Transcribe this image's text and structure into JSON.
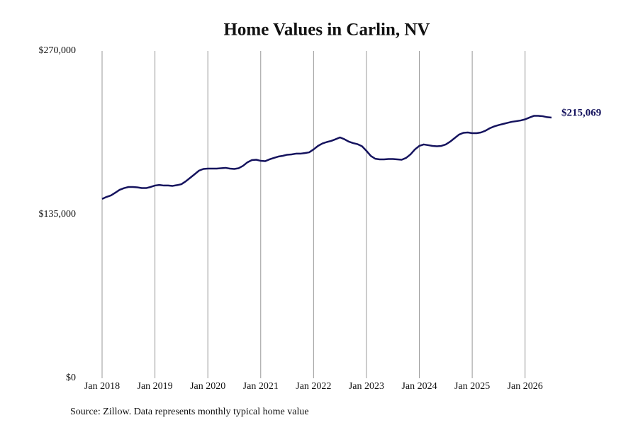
{
  "chart_data": {
    "type": "line",
    "title": "Home Values in Carlin, NV",
    "source": "Source: Zillow. Data represents monthly typical home value",
    "end_label": "$215,069",
    "x": [
      "2018-01",
      "2018-02",
      "2018-03",
      "2018-04",
      "2018-05",
      "2018-06",
      "2018-07",
      "2018-08",
      "2018-09",
      "2018-10",
      "2018-11",
      "2018-12",
      "2019-01",
      "2019-02",
      "2019-03",
      "2019-04",
      "2019-05",
      "2019-06",
      "2019-07",
      "2019-08",
      "2019-09",
      "2019-10",
      "2019-11",
      "2019-12",
      "2020-01",
      "2020-02",
      "2020-03",
      "2020-04",
      "2020-05",
      "2020-06",
      "2020-07",
      "2020-08",
      "2020-09",
      "2020-10",
      "2020-11",
      "2020-12",
      "2021-01",
      "2021-02",
      "2021-03",
      "2021-04",
      "2021-05",
      "2021-06",
      "2021-07",
      "2021-08",
      "2021-09",
      "2021-10",
      "2021-11",
      "2021-12",
      "2022-01",
      "2022-02",
      "2022-03",
      "2022-04",
      "2022-05",
      "2022-06",
      "2022-07",
      "2022-08",
      "2022-09",
      "2022-10",
      "2022-11",
      "2022-12",
      "2023-01",
      "2023-02",
      "2023-03",
      "2023-04",
      "2023-05",
      "2023-06",
      "2023-07",
      "2023-08",
      "2023-09",
      "2023-10",
      "2023-11",
      "2023-12",
      "2024-01",
      "2024-02",
      "2024-03",
      "2024-04",
      "2024-05",
      "2024-06",
      "2024-07",
      "2024-08",
      "2024-09",
      "2024-10",
      "2024-11",
      "2024-12",
      "2025-01",
      "2025-02",
      "2025-03",
      "2025-04",
      "2025-05",
      "2025-06",
      "2025-07",
      "2025-08",
      "2025-09",
      "2025-10",
      "2025-11",
      "2025-12",
      "2026-01",
      "2026-02",
      "2026-03",
      "2026-04",
      "2026-05",
      "2026-06",
      "2026-07"
    ],
    "series": [
      {
        "name": "Home Value",
        "color": "#15135e",
        "values": [
          147900,
          149600,
          150800,
          153100,
          155500,
          156900,
          157800,
          157800,
          157500,
          156900,
          156900,
          157800,
          159000,
          159500,
          159000,
          159000,
          158700,
          159300,
          160100,
          162500,
          165400,
          168300,
          171300,
          172700,
          173000,
          173000,
          173000,
          173300,
          173600,
          173000,
          172700,
          173300,
          175300,
          178200,
          180000,
          180300,
          179400,
          179100,
          180600,
          181800,
          182900,
          183500,
          184400,
          184700,
          185300,
          185300,
          185800,
          186400,
          188800,
          191700,
          193700,
          194900,
          195800,
          197200,
          198700,
          197200,
          195200,
          194000,
          193100,
          191400,
          187600,
          183400,
          181100,
          180600,
          180600,
          180900,
          180900,
          180600,
          180300,
          181800,
          184700,
          188800,
          191700,
          192900,
          192300,
          191700,
          191400,
          191700,
          192900,
          195200,
          198100,
          201000,
          202500,
          202800,
          202200,
          202200,
          202800,
          204200,
          206300,
          207800,
          208900,
          209800,
          210700,
          211600,
          212100,
          212700,
          213600,
          215100,
          216500,
          216500,
          216200,
          215400,
          215069
        ]
      }
    ],
    "xlim": [
      "2018-01",
      "2026-07"
    ],
    "xticks": [
      {
        "value": "2018-01",
        "label": "Jan 2018"
      },
      {
        "value": "2019-01",
        "label": "Jan 2019"
      },
      {
        "value": "2020-01",
        "label": "Jan 2020"
      },
      {
        "value": "2021-01",
        "label": "Jan 2021"
      },
      {
        "value": "2022-01",
        "label": "Jan 2022"
      },
      {
        "value": "2023-01",
        "label": "Jan 2023"
      },
      {
        "value": "2024-01",
        "label": "Jan 2024"
      },
      {
        "value": "2025-01",
        "label": "Jan 2025"
      },
      {
        "value": "2026-01",
        "label": "Jan 2026"
      }
    ],
    "ylim": [
      0,
      270000
    ],
    "yticks": [
      {
        "value": 0,
        "label": "$0"
      },
      {
        "value": 135000,
        "label": "$135,000"
      },
      {
        "value": 270000,
        "label": "$270,000"
      }
    ],
    "grid": "x"
  }
}
